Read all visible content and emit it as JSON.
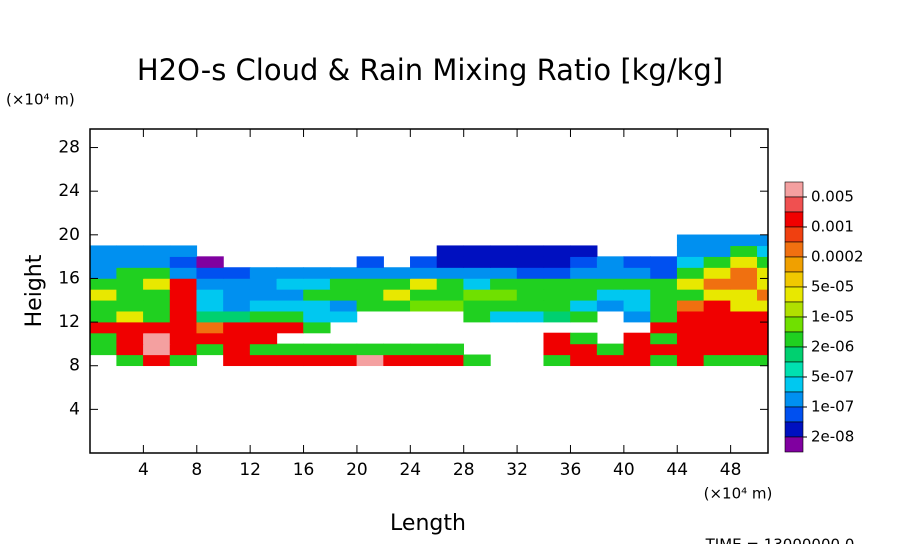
{
  "chart_data": {
    "type": "contour",
    "title": "H2O-s Cloud & Rain Mixing Ratio [kg/kg]",
    "y_unit": "(×10⁴ m)",
    "x_unit": "(×10⁴ m)",
    "xlabel": "Length",
    "ylabel": "Height",
    "footer": "TIME = 13000000.0",
    "xlim": [
      0,
      50.8
    ],
    "ylim": [
      0,
      29.7
    ],
    "xticks": [
      4,
      8,
      12,
      16,
      20,
      24,
      28,
      32,
      36,
      40,
      44,
      48
    ],
    "yticks": [
      4,
      8,
      12,
      16,
      20,
      24,
      28
    ],
    "colorbar_ticks": [
      0.005,
      0.001,
      0.0002,
      {
        "value": 5e-05,
        "label": "5e-05"
      },
      {
        "value": 1e-05,
        "label": "1e-05"
      },
      {
        "value": 2e-06,
        "label": "2e-06"
      },
      {
        "value": 5e-07,
        "label": "5e-07"
      },
      {
        "value": 1e-07,
        "label": "1e-07"
      },
      {
        "value": 2e-08,
        "label": "2e-08"
      }
    ],
    "colors": [
      "#f4a0a0",
      "#f05050",
      "#f00000",
      "#f04010",
      "#f07010",
      "#f0a000",
      "#f0c800",
      "#e8e800",
      "#b0e000",
      "#70e000",
      "#20d020",
      "#00d070",
      "#00e0b0",
      "#00c8f0",
      "#0090f0",
      "#0050f0",
      "#0010c0",
      "#8000a0"
    ],
    "x": [
      1,
      3,
      5,
      7,
      9,
      11,
      13,
      15,
      17,
      19,
      21,
      23,
      25,
      27,
      29,
      31,
      33,
      35,
      37,
      39,
      41,
      43,
      45,
      47,
      49,
      51
    ],
    "y": [
      8.5,
      9.5,
      10.5,
      11.5,
      12.5,
      13.5,
      14.5,
      15.5,
      16.5,
      17.5,
      18.5,
      19.5
    ],
    "z": [
      [
        null,
        3e-06,
        0.002,
        3e-06,
        null,
        0.002,
        0.002,
        0.002,
        0.002,
        0.002,
        0.008,
        0.002,
        0.002,
        0.002,
        3e-06,
        null,
        null,
        3e-06,
        0.002,
        0.002,
        0.002,
        3e-06,
        0.002,
        3e-06,
        3e-06,
        3e-06
      ],
      [
        3e-06,
        0.002,
        0.008,
        0.002,
        3e-06,
        0.002,
        3e-06,
        3e-06,
        3e-06,
        3e-06,
        3e-06,
        3e-06,
        3e-06,
        3e-06,
        null,
        null,
        null,
        0.002,
        0.002,
        3e-06,
        0.002,
        0.002,
        0.002,
        0.002,
        0.002,
        0.002
      ],
      [
        3e-06,
        0.002,
        0.008,
        0.002,
        0.002,
        0.002,
        0.002,
        null,
        null,
        null,
        null,
        null,
        null,
        null,
        null,
        null,
        null,
        0.002,
        3e-06,
        null,
        0.002,
        3e-06,
        0.002,
        0.002,
        0.002,
        0.002
      ],
      [
        0.002,
        0.002,
        0.002,
        0.002,
        0.0003,
        0.002,
        0.002,
        0.002,
        3e-06,
        null,
        null,
        null,
        null,
        null,
        null,
        null,
        null,
        null,
        null,
        null,
        null,
        0.002,
        0.002,
        0.002,
        0.002,
        0.002
      ],
      [
        3e-06,
        4e-05,
        3e-06,
        0.002,
        1.5e-06,
        1.5e-06,
        3e-06,
        3e-06,
        3e-07,
        3e-07,
        null,
        null,
        null,
        null,
        3e-06,
        3e-07,
        3e-07,
        1.5e-06,
        3e-06,
        null,
        1.5e-07,
        3e-06,
        0.002,
        0.002,
        0.002,
        0.002
      ],
      [
        3e-06,
        3e-06,
        3e-06,
        0.002,
        3e-07,
        1.5e-07,
        3e-07,
        3e-07,
        3e-07,
        1.5e-07,
        3e-06,
        3e-06,
        8e-06,
        8e-06,
        3e-06,
        3e-06,
        3e-06,
        3e-06,
        3e-07,
        1.5e-07,
        3e-07,
        3e-06,
        0.0003,
        0.002,
        4e-05,
        4e-05
      ],
      [
        4e-05,
        3e-06,
        3e-06,
        0.002,
        3e-07,
        1.5e-07,
        1.5e-07,
        1.5e-07,
        3e-06,
        3e-06,
        3e-06,
        4e-05,
        3e-06,
        3e-06,
        8e-06,
        8e-06,
        3e-06,
        3e-06,
        3e-06,
        3e-07,
        3e-07,
        3e-06,
        3e-06,
        4e-05,
        4e-05,
        0.0003
      ],
      [
        3e-06,
        3e-06,
        4e-05,
        0.002,
        1.5e-07,
        1.5e-07,
        1.5e-07,
        3e-07,
        3e-07,
        3e-06,
        3e-06,
        3e-06,
        4e-05,
        3e-06,
        3e-07,
        3e-06,
        3e-06,
        3e-06,
        3e-06,
        3e-06,
        3e-06,
        3e-06,
        4e-05,
        0.0003,
        0.0003,
        4e-05
      ],
      [
        1.5e-07,
        3e-06,
        3e-06,
        1.5e-07,
        7e-08,
        7e-08,
        1.5e-07,
        1.5e-07,
        1.5e-07,
        1.5e-07,
        1.5e-07,
        1.5e-07,
        1.5e-07,
        1.5e-07,
        1.5e-07,
        1.5e-07,
        7e-08,
        7e-08,
        1.5e-07,
        1.5e-07,
        1.5e-07,
        7e-08,
        3e-06,
        4e-05,
        0.0003,
        4e-05
      ],
      [
        1.5e-07,
        1.5e-07,
        1.5e-07,
        7e-08,
        1e-08,
        null,
        null,
        null,
        null,
        null,
        7e-08,
        null,
        7e-08,
        3e-08,
        3e-08,
        3e-08,
        3e-08,
        3e-08,
        7e-08,
        1.5e-07,
        7e-08,
        7e-08,
        3e-07,
        3e-06,
        4e-05,
        3e-06
      ],
      [
        1.5e-07,
        1.5e-07,
        1.5e-07,
        1.5e-07,
        null,
        null,
        null,
        null,
        null,
        null,
        null,
        null,
        null,
        3e-08,
        3e-08,
        3e-08,
        3e-08,
        3e-08,
        3e-08,
        null,
        null,
        null,
        1.5e-07,
        1.5e-07,
        3e-06,
        3e-07
      ],
      [
        null,
        null,
        null,
        null,
        null,
        null,
        null,
        null,
        null,
        null,
        null,
        null,
        null,
        null,
        null,
        null,
        null,
        null,
        null,
        null,
        null,
        null,
        1.5e-07,
        1.5e-07,
        1.5e-07,
        1.5e-07
      ]
    ]
  }
}
